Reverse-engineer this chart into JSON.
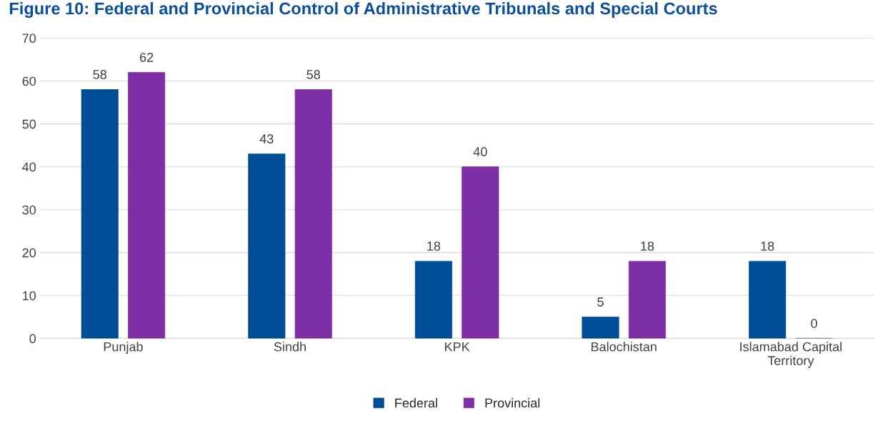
{
  "chart_data": {
    "type": "bar",
    "title": "Figure 10: Federal and Provincial Control of Administrative Tribunals and Special Courts",
    "categories": [
      "Punjab",
      "Sindh",
      "KPK",
      "Balochistan",
      "Islamabad Capital\nTerritory"
    ],
    "series": [
      {
        "name": "Federal",
        "color": "#004c97",
        "values": [
          58,
          43,
          18,
          5,
          18
        ]
      },
      {
        "name": "Provincial",
        "color": "#7f2fa5",
        "values": [
          62,
          58,
          40,
          18,
          0
        ]
      }
    ],
    "ylim": [
      0,
      70
    ],
    "yticks": [
      0,
      10,
      20,
      30,
      40,
      50,
      60,
      70
    ],
    "grid": "y",
    "legend": "bottom",
    "data_labels": true
  }
}
